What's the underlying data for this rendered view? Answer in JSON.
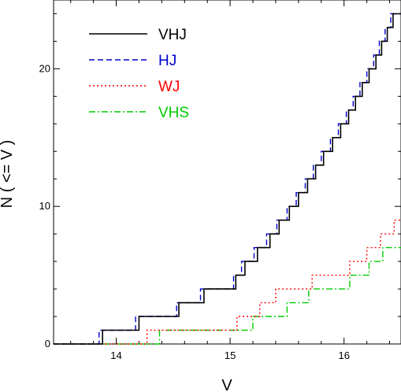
{
  "chart_data": {
    "type": "line",
    "step": true,
    "title": "",
    "xlabel": "V",
    "ylabel": "N ( <= V )",
    "xlim": [
      13.45,
      16.5
    ],
    "ylim": [
      0,
      25
    ],
    "xticks": [
      14,
      15,
      16
    ],
    "yticks": [
      0,
      10,
      20
    ],
    "legend_position": "top-left",
    "grid": false,
    "series": [
      {
        "name": "VHJ",
        "color": "#000000",
        "dash": "solid",
        "x": [
          13.45,
          13.88,
          14.2,
          14.4,
          14.55,
          14.77,
          14.9,
          15.05,
          15.13,
          15.24,
          15.35,
          15.43,
          15.52,
          15.6,
          15.68,
          15.75,
          15.82,
          15.9,
          15.97,
          16.04,
          16.1,
          16.16,
          16.22,
          16.28,
          16.33,
          16.38,
          16.43,
          16.46,
          16.5
        ],
        "y": [
          0,
          1,
          2,
          2,
          3,
          4,
          4,
          5,
          6,
          7,
          8,
          9,
          10,
          11,
          12,
          13,
          14,
          15,
          16,
          17,
          18,
          19,
          20,
          21,
          22,
          23,
          24,
          24,
          24
        ]
      },
      {
        "name": "HJ",
        "color": "#0000cc",
        "dash": "dashed",
        "x": [
          13.45,
          13.85,
          14.17,
          14.37,
          14.53,
          14.74,
          14.88,
          15.03,
          15.1,
          15.21,
          15.32,
          15.41,
          15.5,
          15.58,
          15.66,
          15.73,
          15.8,
          15.88,
          15.95,
          16.02,
          16.08,
          16.14,
          16.2,
          16.26,
          16.31,
          16.36,
          16.41,
          16.45,
          16.5
        ],
        "y": [
          0,
          1,
          2,
          2,
          3,
          4,
          4,
          5,
          6,
          7,
          8,
          9,
          10,
          11,
          12,
          13,
          14,
          15,
          16,
          17,
          18,
          19,
          20,
          21,
          22,
          23,
          24,
          24,
          24
        ]
      },
      {
        "name": "WJ",
        "color": "#ff0000",
        "dash": "dotted",
        "x": [
          13.45,
          14.27,
          14.82,
          15.06,
          15.26,
          15.4,
          15.57,
          15.72,
          15.88,
          16.05,
          16.2,
          16.32,
          16.44,
          16.5
        ],
        "y": [
          0,
          1,
          1,
          2,
          3,
          4,
          4,
          5,
          5,
          6,
          7,
          8,
          9,
          9
        ]
      },
      {
        "name": "VHS",
        "color": "#00cc00",
        "dash": "dashdot",
        "x": [
          13.45,
          14.38,
          14.96,
          15.2,
          15.35,
          15.5,
          15.69,
          15.88,
          16.05,
          16.22,
          16.34,
          16.5
        ],
        "y": [
          0,
          1,
          1,
          2,
          2,
          3,
          4,
          4,
          5,
          6,
          7,
          7
        ]
      }
    ]
  }
}
